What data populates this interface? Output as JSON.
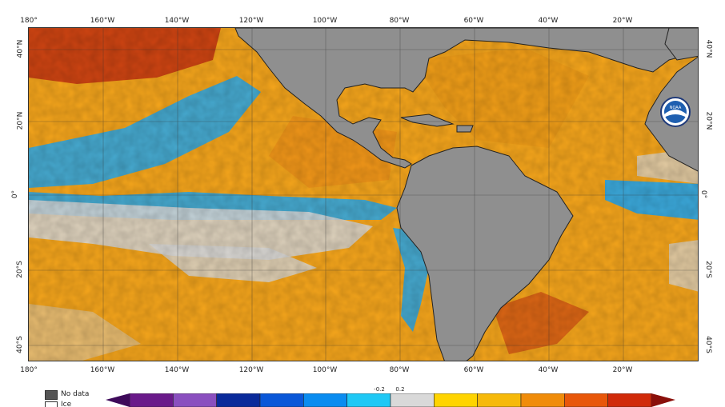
{
  "map": {
    "lon_labels": [
      "180°",
      "160°W",
      "140°W",
      "120°W",
      "100°W",
      "80°W",
      "60°W",
      "40°W",
      "20°W"
    ],
    "lat_labels_left": [
      "40°N",
      "20°N",
      "0°",
      "20°S",
      "40°S"
    ],
    "lat_labels_right": [
      "40°N",
      "20°N",
      "0°",
      "20°S",
      "40°S"
    ],
    "agency_logo": "NOAA",
    "colors": {
      "ocean_warm": "#f6a61c",
      "ocean_hot": "#c73210",
      "ocean_cool": "#27a9ef",
      "ocean_neutral": "#d8d8d8",
      "land": "#8f8f8f"
    }
  },
  "legend": {
    "nodata_label": "No data",
    "ice_label": "Ice",
    "nodata_color": "#555555",
    "ice_color": "#ffffff"
  },
  "colorbar": {
    "neutral_low_label": "-0.2",
    "neutral_high_label": "0.2",
    "colors": [
      "#3e0a5a",
      "#6a1a8a",
      "#8a4fbf",
      "#0a2a9a",
      "#0a57d8",
      "#0a8cf0",
      "#1fc8f5",
      "#d9d9d9",
      "#ffd400",
      "#f6b90a",
      "#f08c0a",
      "#e8570a",
      "#d02a0a",
      "#8a0f0a"
    ]
  }
}
